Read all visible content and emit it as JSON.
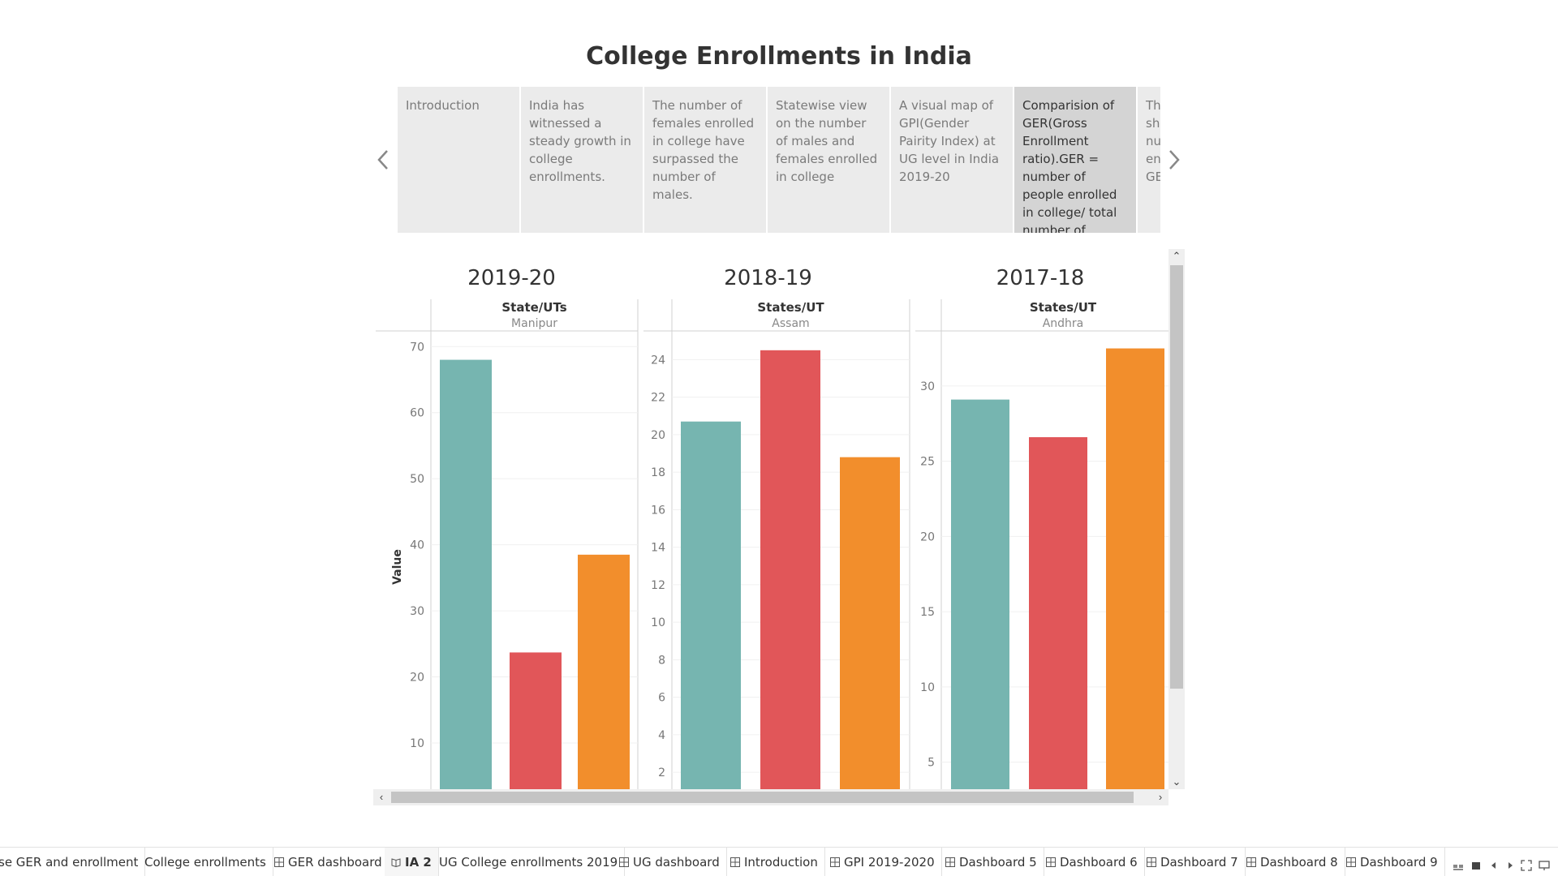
{
  "title": "College Enrollments in India",
  "story_points": [
    {
      "text": "Introduction",
      "active": false
    },
    {
      "text": "India has witnessed a steady growth in college enrollments.",
      "active": false
    },
    {
      "text": "The number of females enrolled in college have surpassed the number of males.",
      "active": false
    },
    {
      "text": "Statewise view on the number of males and females enrolled in college",
      "active": false
    },
    {
      "text": "A visual map of GPI(Gender Pairity Index) at UG level in India 2019-20",
      "active": false
    },
    {
      "text": "Comparision of GER(Gross Enrollment ratio).GER = number of people enrolled in college/ total number of",
      "active": true
    },
    {
      "text": "Th sh nu en GE",
      "active": false
    }
  ],
  "nav": {
    "prev_icon": "chevron-left-icon",
    "next_icon": "chevron-right-icon"
  },
  "colors": {
    "teal": "#76b5b0",
    "red": "#e15659",
    "orange": "#f28e2c"
  },
  "chart_data": [
    {
      "type": "bar",
      "title": "2019-20",
      "header": "State/UTs",
      "subheader": "Manipur",
      "ylabel": "Value",
      "ylim": [
        3,
        72
      ],
      "yticks": [
        10,
        20,
        30,
        40,
        50,
        60,
        70
      ],
      "values": [
        68.0,
        23.7,
        38.5
      ],
      "colors": [
        "#76b5b0",
        "#e15659",
        "#f28e2c"
      ]
    },
    {
      "type": "bar",
      "title": "2018-19",
      "header": "States/UT",
      "subheader": "Assam",
      "ylabel": "",
      "ylim": [
        1.1,
        25.4
      ],
      "yticks": [
        2,
        4,
        6,
        8,
        10,
        12,
        14,
        16,
        18,
        20,
        22,
        24
      ],
      "values": [
        20.7,
        24.5,
        18.8
      ],
      "colors": [
        "#76b5b0",
        "#e15659",
        "#f28e2c"
      ]
    },
    {
      "type": "bar",
      "title": "2017-18",
      "header": "States/UT",
      "subheader": "Andhra",
      "ylabel": "",
      "ylim": [
        3.2,
        33.5
      ],
      "yticks": [
        5,
        10,
        15,
        20,
        25,
        30
      ],
      "values": [
        29.1,
        26.6,
        32.5
      ],
      "colors": [
        "#76b5b0",
        "#e15659",
        "#f28e2c"
      ]
    }
  ],
  "tabs": [
    {
      "label": "se GER and enrollment",
      "icon": "",
      "active": false
    },
    {
      "label": "College enrollments",
      "icon": "",
      "active": false
    },
    {
      "label": "GER dashboard",
      "icon": "dashboard-icon",
      "active": false
    },
    {
      "label": "IA 2",
      "icon": "story-icon",
      "active": true
    },
    {
      "label": "UG College enrollments 2019",
      "icon": "",
      "active": false
    },
    {
      "label": "UG dashboard",
      "icon": "dashboard-icon",
      "active": false
    },
    {
      "label": "Introduction",
      "icon": "dashboard-icon",
      "active": false
    },
    {
      "label": "GPI 2019-2020",
      "icon": "dashboard-icon",
      "active": false
    },
    {
      "label": "Dashboard 5",
      "icon": "dashboard-icon",
      "active": false
    },
    {
      "label": "Dashboard 6",
      "icon": "dashboard-icon",
      "active": false
    },
    {
      "label": "Dashboard 7",
      "icon": "dashboard-icon",
      "active": false
    },
    {
      "label": "Dashboard 8",
      "icon": "dashboard-icon",
      "active": false
    },
    {
      "label": "Dashboard 9",
      "icon": "dashboard-icon",
      "active": false
    }
  ],
  "tab_controls": [
    "show-sheet-sorter-icon",
    "show-filmstrip-icon",
    "first-sheet-icon",
    "next-sheet-icon",
    "fullscreen-icon",
    "present-icon"
  ]
}
